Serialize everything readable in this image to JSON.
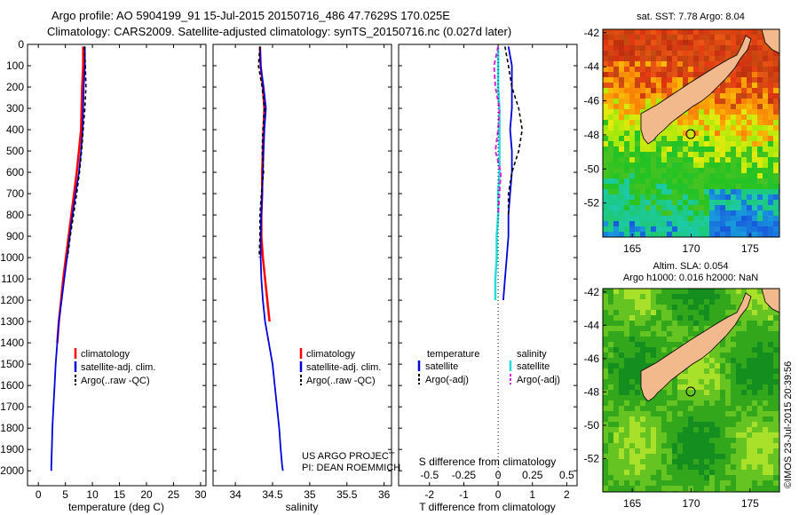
{
  "header": {
    "line1": "Argo profile: AO 5904199_91 15-Jul-2015 20150716_486 47.7629S 170.025E",
    "line2": "Climatology: CARS2009. Satellite-adjusted climatology: synTS_20150716.nc (0.027d later)"
  },
  "colors": {
    "climatology": "#ff0000",
    "satellite": "#0000dd",
    "argo": "#000000",
    "sal_satellite": "#22dddd",
    "sal_argo": "#dd22dd",
    "land": "#f2b98d"
  },
  "chart_data": [
    {
      "type": "line",
      "name": "temperature-panel",
      "xlabel": "temperature (deg C)",
      "ylabel": "",
      "xlim": [
        -2,
        31
      ],
      "ylim": [
        2070,
        0
      ],
      "xticks": [
        0,
        5,
        10,
        15,
        20,
        25,
        30
      ],
      "yticks": [
        0,
        100,
        200,
        300,
        400,
        500,
        600,
        700,
        800,
        900,
        1000,
        1100,
        1200,
        1300,
        1400,
        1500,
        1600,
        1700,
        1800,
        1900,
        2000
      ],
      "legend": [
        "climatology",
        "satellite-adj. clim.",
        "Argo(..raw -QC)"
      ],
      "legend_position": "lower-center",
      "series": [
        {
          "name": "climatology",
          "x": [
            8.3,
            8.3,
            8.1,
            8.0,
            7.9,
            7.5,
            7.1,
            6.6,
            6.1,
            5.6,
            5.1,
            4.6,
            4.2,
            3.8,
            3.5
          ],
          "y": [
            10,
            100,
            200,
            300,
            400,
            500,
            600,
            700,
            800,
            900,
            1000,
            1100,
            1200,
            1300,
            1400
          ]
        },
        {
          "name": "satellite-adj. clim.",
          "x": [
            8.6,
            8.6,
            8.4,
            8.3,
            8.2,
            7.9,
            7.5,
            6.9,
            6.3,
            5.8,
            5.3,
            4.8,
            4.3,
            3.8,
            3.5,
            3.2,
            3.0,
            2.8,
            2.6,
            2.5,
            2.4,
            2.4
          ],
          "y": [
            10,
            100,
            200,
            300,
            400,
            500,
            600,
            700,
            800,
            900,
            1000,
            1100,
            1200,
            1300,
            1400,
            1500,
            1600,
            1700,
            1800,
            1900,
            1980,
            2000
          ]
        },
        {
          "name": "Argo(..raw -QC)",
          "x": [
            8.5,
            8.7,
            8.8,
            8.6,
            8.3,
            8.0,
            7.6,
            7.1,
            6.5,
            5.9,
            5.4
          ],
          "y": [
            10,
            100,
            200,
            300,
            400,
            500,
            600,
            700,
            800,
            900,
            1000
          ]
        }
      ]
    },
    {
      "type": "line",
      "name": "salinity-panel",
      "xlabel": "salinity",
      "ylabel": "",
      "xlim": [
        33.7,
        36.1
      ],
      "ylim": [
        2070,
        0
      ],
      "xticks": [
        34,
        34.5,
        35,
        35.5,
        36
      ],
      "xtick_labels": [
        "34",
        "34.5",
        "35",
        "35.5",
        "36"
      ],
      "legend": [
        "climatology",
        "satellite-adj. clim.",
        "Argo(..raw -QC)"
      ],
      "legend_position": "lower-right",
      "annotation": [
        "US ARGO PROJECT",
        "PI: DEAN ROEMMICH"
      ],
      "series": [
        {
          "name": "climatology",
          "x": [
            34.33,
            34.34,
            34.37,
            34.39,
            34.38,
            34.37,
            34.36,
            34.36,
            34.35,
            34.35,
            34.37,
            34.4,
            34.43,
            34.46
          ],
          "y": [
            10,
            100,
            200,
            300,
            400,
            500,
            600,
            700,
            800,
            900,
            1000,
            1100,
            1200,
            1300
          ]
        },
        {
          "name": "satellite-adj. clim.",
          "x": [
            34.33,
            34.34,
            34.38,
            34.41,
            34.39,
            34.38,
            34.37,
            34.36,
            34.35,
            34.34,
            34.34,
            34.35,
            34.37,
            34.4,
            34.45,
            34.5,
            34.53,
            34.56,
            34.59,
            34.61,
            34.63,
            34.64
          ],
          "y": [
            10,
            100,
            200,
            300,
            400,
            500,
            600,
            700,
            800,
            900,
            1000,
            1100,
            1200,
            1300,
            1400,
            1500,
            1600,
            1700,
            1800,
            1900,
            1980,
            2000
          ]
        },
        {
          "name": "Argo(..raw -QC)",
          "x": [
            34.33,
            34.31,
            34.36,
            34.39,
            34.37,
            34.36,
            34.38,
            34.35,
            34.33,
            34.33,
            34.32
          ],
          "y": [
            10,
            100,
            200,
            300,
            400,
            500,
            600,
            700,
            800,
            900,
            1000
          ]
        }
      ]
    },
    {
      "type": "line",
      "name": "difference-panel",
      "xlabel": "T difference from climatology",
      "xlabel_top": "S difference from climatology",
      "xlim": [
        -2.9,
        2.3
      ],
      "ylim": [
        2070,
        0
      ],
      "xticks": [
        -2,
        -1,
        0,
        1,
        2
      ],
      "xticks_salinity": [
        "-0.5",
        "-0.25",
        "0",
        "0.25",
        "0.5"
      ],
      "legend_left_title": "temperature",
      "legend_right_title": "salinity",
      "legend": [
        "satellite",
        "Argo(-adj)",
        "satellite",
        "Argo(-adj)"
      ],
      "series": [
        {
          "name": "T satellite",
          "x": [
            0.3,
            0.4,
            0.4,
            0.4,
            0.35,
            0.4,
            0.4,
            0.35,
            0.3,
            0.3,
            0.25,
            0.2,
            0.15
          ],
          "y": [
            10,
            100,
            200,
            300,
            400,
            500,
            600,
            700,
            800,
            900,
            1000,
            1100,
            1200
          ]
        },
        {
          "name": "T Argo(-adj)",
          "x": [
            0.2,
            0.3,
            0.4,
            0.6,
            0.7,
            0.6,
            0.4,
            0.3,
            0.3
          ],
          "y": [
            10,
            100,
            200,
            300,
            400,
            500,
            600,
            700,
            800
          ]
        },
        {
          "name": "S satellite",
          "x": [
            0.0,
            0.0,
            0.0,
            0.01,
            0.01,
            0.01,
            0.01,
            0.0,
            0.0,
            -0.01,
            -0.01,
            -0.02,
            -0.02
          ],
          "y": [
            10,
            100,
            200,
            300,
            400,
            500,
            600,
            700,
            800,
            900,
            1000,
            1100,
            1200
          ]
        },
        {
          "name": "S Argo(-adj)",
          "x": [
            0.0,
            -0.03,
            -0.02,
            0.01,
            0.0,
            -0.02,
            0.02,
            0.01,
            0.0
          ],
          "y": [
            10,
            100,
            200,
            300,
            400,
            500,
            600,
            700,
            800
          ]
        }
      ]
    },
    {
      "type": "heatmap",
      "name": "sst-map",
      "title": "sat. SST: 7.78 Argo: 8.04",
      "xlim": [
        162.5,
        177.5
      ],
      "ylim": [
        -54,
        -41.8
      ],
      "xticks": [
        165,
        170,
        175
      ],
      "yticks": [
        -42,
        -44,
        -46,
        -48,
        -50,
        -52
      ]
    },
    {
      "type": "heatmap",
      "name": "sla-map",
      "title": "Altim. SLA: 0.054",
      "subtitle": "Argo h1000: 0.016 h2000: NaN",
      "xlim": [
        162.5,
        177.5
      ],
      "ylim": [
        -54,
        -41.8
      ],
      "xticks": [
        165,
        170,
        175
      ],
      "yticks": [
        -42,
        -44,
        -46,
        -48,
        -50,
        -52
      ]
    }
  ],
  "side_caption": "©IMOS 23-Jul-2015 20:39:56"
}
